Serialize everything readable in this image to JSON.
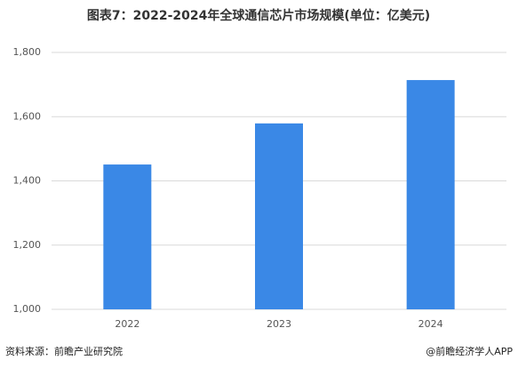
{
  "chart_data": {
    "type": "bar",
    "title": "图表7：2022-2024年全球通信芯片市场规模(单位：亿美元)",
    "categories": [
      "2022",
      "2023",
      "2024"
    ],
    "values": [
      1451,
      1579,
      1714
    ],
    "color": "#3a88e6",
    "ylim": [
      1000,
      1800
    ],
    "yticks": [
      {
        "value": 1000,
        "label": "1,000"
      },
      {
        "value": 1200,
        "label": "1,200"
      },
      {
        "value": 1400,
        "label": "1,400"
      },
      {
        "value": 1600,
        "label": "1,600"
      },
      {
        "value": 1800,
        "label": "1,800"
      }
    ],
    "grid": true
  },
  "footer": {
    "source": "资料来源：前瞻产业研究院",
    "credit": "@前瞻经济学人APP"
  }
}
